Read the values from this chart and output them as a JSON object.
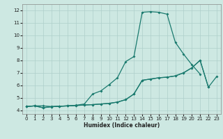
{
  "xlabel": "Humidex (Indice chaleur)",
  "bg_color": "#cde8e2",
  "line_color": "#1a7a6e",
  "grid_color": "#aecfca",
  "xlim": [
    -0.5,
    23.5
  ],
  "ylim": [
    3.7,
    12.5
  ],
  "xticks": [
    0,
    1,
    2,
    3,
    4,
    5,
    6,
    7,
    8,
    9,
    10,
    11,
    12,
    13,
    14,
    15,
    16,
    17,
    18,
    19,
    20,
    21,
    22,
    23
  ],
  "yticks": [
    4,
    5,
    6,
    7,
    8,
    9,
    10,
    11,
    12
  ],
  "lineA_x": [
    0,
    1,
    2,
    3,
    4,
    5,
    6,
    7,
    8,
    9,
    10,
    11,
    12,
    13,
    14,
    15,
    16,
    17,
    18,
    19,
    20,
    21
  ],
  "lineA_y": [
    4.3,
    4.35,
    4.35,
    4.3,
    4.32,
    4.35,
    4.4,
    4.5,
    5.3,
    5.55,
    6.05,
    6.6,
    7.9,
    8.3,
    11.85,
    11.9,
    11.85,
    11.7,
    9.45,
    8.5,
    7.65,
    6.9
  ],
  "lineB_x": [
    0,
    1,
    2,
    3,
    4,
    5,
    6,
    7,
    8,
    9,
    10,
    11,
    12,
    13,
    14,
    15,
    16,
    17,
    18,
    19,
    20,
    21,
    22
  ],
  "lineB_y": [
    4.3,
    4.35,
    4.2,
    4.28,
    4.32,
    4.35,
    4.38,
    4.42,
    4.45,
    4.5,
    4.55,
    4.65,
    4.85,
    5.3,
    6.4,
    6.5,
    6.6,
    6.65,
    6.75,
    7.0,
    7.4,
    8.0,
    5.85
  ],
  "lineC_x": [
    0,
    1,
    2,
    3,
    4,
    5,
    6,
    7,
    8,
    9,
    10,
    11,
    12,
    13,
    14,
    15,
    16,
    17,
    18,
    19,
    20,
    21,
    22,
    23
  ],
  "lineC_y": [
    4.3,
    4.35,
    4.2,
    4.28,
    4.32,
    4.35,
    4.38,
    4.42,
    4.45,
    4.5,
    4.55,
    4.65,
    4.85,
    5.3,
    6.4,
    6.5,
    6.6,
    6.65,
    6.75,
    7.0,
    7.4,
    8.0,
    5.85,
    6.7
  ]
}
